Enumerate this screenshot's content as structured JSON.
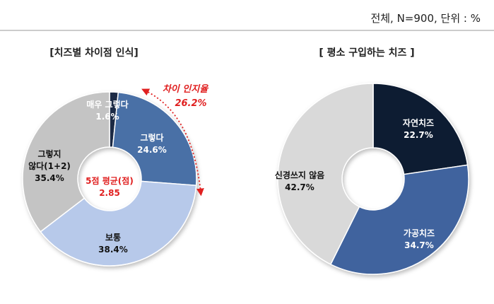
{
  "header_note": "전체, N=900, 단위 : %",
  "chart_data": [
    {
      "type": "pie",
      "title": "[치즈별 차이점 인식]",
      "slices": [
        {
          "label": "매우 그렇다",
          "value": 1.6,
          "color": "#1c2a44",
          "label_color": "#ffffff"
        },
        {
          "label": "그렇다",
          "value": 24.6,
          "color": "#4a6fa6",
          "label_color": "#ffffff"
        },
        {
          "label": "보통",
          "value": 38.4,
          "color": "#b7c9ea",
          "label_color": "#111111"
        },
        {
          "label": "그렇지 않다(1+2)",
          "label_lines": [
            "그렇지",
            "않다(1+2)"
          ],
          "value": 35.4,
          "color": "#c4c4c4",
          "label_color": "#111111"
        }
      ],
      "center": {
        "label": "5점 평균(점)",
        "value": "2.85"
      },
      "callout": {
        "label": "차이 인지율",
        "value": "26.2%"
      }
    },
    {
      "type": "pie",
      "title": "[ 평소 구입하는 치즈 ]",
      "slices": [
        {
          "label": "자연치즈",
          "value": 22.7,
          "color": "#0c1a33",
          "label_color": "#ffffff"
        },
        {
          "label": "가공치즈",
          "value": 34.7,
          "color": "#40649e",
          "label_color": "#ffffff"
        },
        {
          "label": "신경쓰지 않음",
          "value": 42.7,
          "color": "#d9d9d9",
          "label_color": "#111111"
        }
      ]
    }
  ]
}
